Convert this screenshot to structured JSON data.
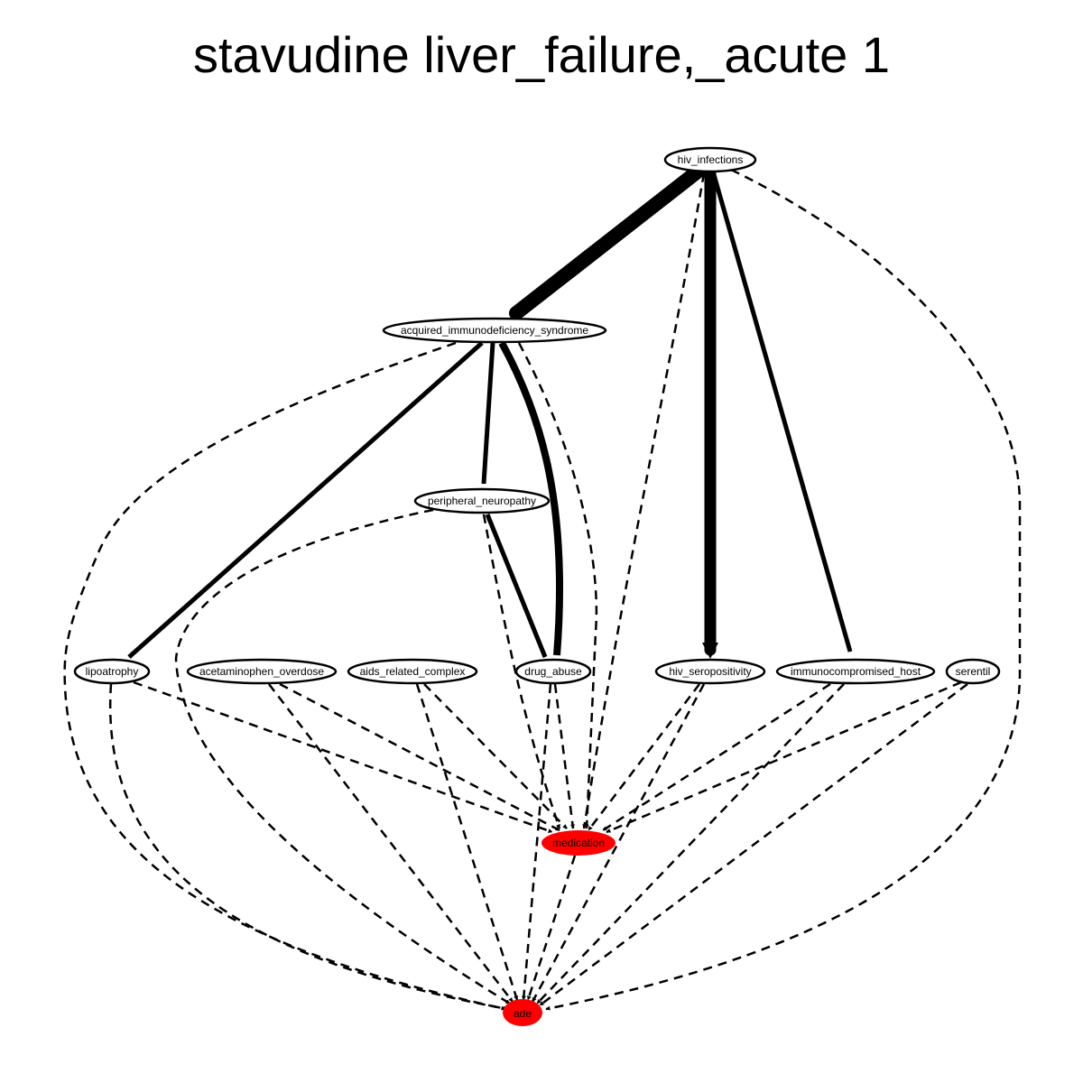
{
  "title": "stavudine liver_failure,_acute 1",
  "colors": {
    "highlight": "#ff0000",
    "stroke": "#000000",
    "background": "#ffffff"
  },
  "nodes": [
    {
      "id": "hiv_infections",
      "label": "hiv_infections",
      "highlight": false
    },
    {
      "id": "acquired_immunodeficiency_syndrome",
      "label": "acquired_immunodeficiency_syndrome",
      "highlight": false
    },
    {
      "id": "peripheral_neuropathy",
      "label": "peripheral_neuropathy",
      "highlight": false
    },
    {
      "id": "lipoatrophy",
      "label": "lipoatrophy",
      "highlight": false
    },
    {
      "id": "acetaminophen_overdose",
      "label": "acetaminophen_overdose",
      "highlight": false
    },
    {
      "id": "aids_related_complex",
      "label": "aids_related_complex",
      "highlight": false
    },
    {
      "id": "drug_abuse",
      "label": "drug_abuse",
      "highlight": false
    },
    {
      "id": "hiv_seropositivity",
      "label": "hiv_seropositivity",
      "highlight": false
    },
    {
      "id": "immunocompromised_host",
      "label": "immunocompromised_host",
      "highlight": false
    },
    {
      "id": "serentil",
      "label": "serentil",
      "highlight": false
    },
    {
      "id": "medication",
      "label": "medication",
      "highlight": true
    },
    {
      "id": "ade",
      "label": "ade",
      "highlight": true
    }
  ],
  "edges": [
    {
      "from": "hiv_infections",
      "to": "acquired_immunodeficiency_syndrome",
      "style": "solid"
    },
    {
      "from": "hiv_infections",
      "to": "hiv_seropositivity",
      "style": "solid"
    },
    {
      "from": "hiv_infections",
      "to": "immunocompromised_host",
      "style": "solid"
    },
    {
      "from": "hiv_infections",
      "to": "medication",
      "style": "dashed"
    },
    {
      "from": "hiv_infections",
      "to": "ade",
      "style": "dashed"
    },
    {
      "from": "acquired_immunodeficiency_syndrome",
      "to": "peripheral_neuropathy",
      "style": "solid"
    },
    {
      "from": "acquired_immunodeficiency_syndrome",
      "to": "lipoatrophy",
      "style": "solid"
    },
    {
      "from": "acquired_immunodeficiency_syndrome",
      "to": "drug_abuse",
      "style": "solid"
    },
    {
      "from": "acquired_immunodeficiency_syndrome",
      "to": "medication",
      "style": "dashed"
    },
    {
      "from": "acquired_immunodeficiency_syndrome",
      "to": "ade",
      "style": "dashed"
    },
    {
      "from": "peripheral_neuropathy",
      "to": "drug_abuse",
      "style": "solid"
    },
    {
      "from": "peripheral_neuropathy",
      "to": "medication",
      "style": "dashed"
    },
    {
      "from": "peripheral_neuropathy",
      "to": "ade",
      "style": "dashed"
    },
    {
      "from": "lipoatrophy",
      "to": "medication",
      "style": "dashed"
    },
    {
      "from": "lipoatrophy",
      "to": "ade",
      "style": "dashed"
    },
    {
      "from": "acetaminophen_overdose",
      "to": "medication",
      "style": "dashed"
    },
    {
      "from": "acetaminophen_overdose",
      "to": "ade",
      "style": "dashed"
    },
    {
      "from": "aids_related_complex",
      "to": "medication",
      "style": "dashed"
    },
    {
      "from": "aids_related_complex",
      "to": "ade",
      "style": "dashed"
    },
    {
      "from": "drug_abuse",
      "to": "medication",
      "style": "dashed"
    },
    {
      "from": "drug_abuse",
      "to": "ade",
      "style": "dashed"
    },
    {
      "from": "hiv_seropositivity",
      "to": "medication",
      "style": "dashed"
    },
    {
      "from": "hiv_seropositivity",
      "to": "ade",
      "style": "dashed"
    },
    {
      "from": "immunocompromised_host",
      "to": "medication",
      "style": "dashed"
    },
    {
      "from": "immunocompromised_host",
      "to": "ade",
      "style": "dashed"
    },
    {
      "from": "serentil",
      "to": "medication",
      "style": "dashed"
    },
    {
      "from": "serentil",
      "to": "ade",
      "style": "dashed"
    },
    {
      "from": "medication",
      "to": "ade",
      "style": "dashed"
    }
  ]
}
